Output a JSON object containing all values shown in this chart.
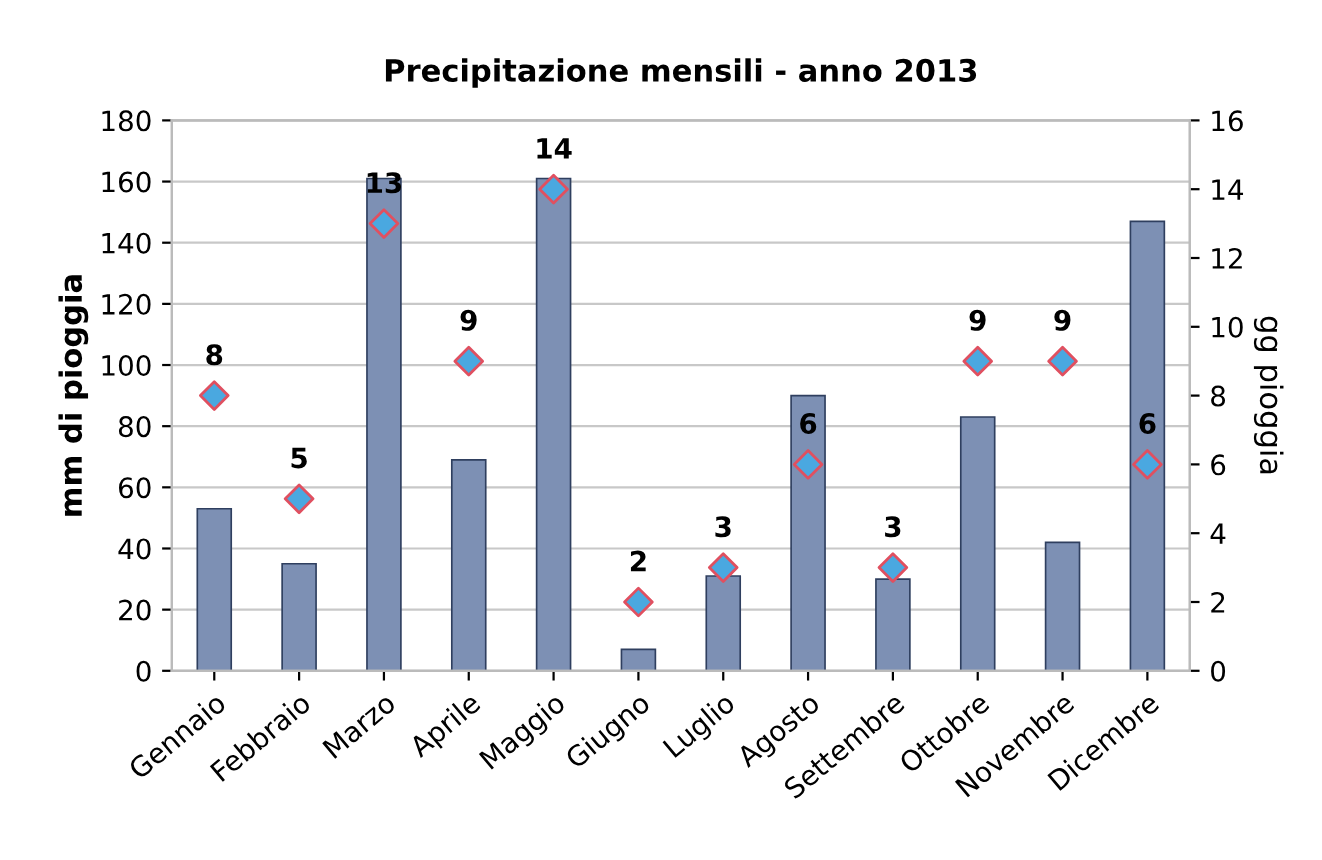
{
  "chart_data": {
    "type": "bar",
    "title": "Precipitazione mensili - anno 2013",
    "ylabel": "mm di pioggia",
    "y2label": "gg pioggia",
    "categories": [
      "Gennaio",
      "Febbraio",
      "Marzo",
      "Aprile",
      "Maggio",
      "Giugno",
      "Luglio",
      "Agosto",
      "Settembre",
      "Ottobre",
      "Novembre",
      "Dicembre"
    ],
    "series": [
      {
        "color": "#7d90b4",
        "values": [
          53,
          35,
          161,
          69,
          161,
          7,
          31,
          90,
          30,
          83,
          42,
          147
        ]
      },
      {
        "type": "scatter",
        "axis": "y2",
        "color": "#4aa8e0",
        "marker": "diamond",
        "data_labels": true,
        "values": [
          8,
          5,
          13,
          9,
          14,
          2,
          3,
          6,
          3,
          9,
          9,
          6
        ]
      }
    ],
    "ylim": [
      0,
      180
    ],
    "yticks": [
      0,
      20,
      40,
      60,
      80,
      100,
      120,
      140,
      160,
      180
    ],
    "y2lim": [
      0,
      16
    ],
    "y2ticks": [
      0,
      2,
      4,
      6,
      8,
      10,
      12,
      14,
      16
    ],
    "grid": "y"
  }
}
